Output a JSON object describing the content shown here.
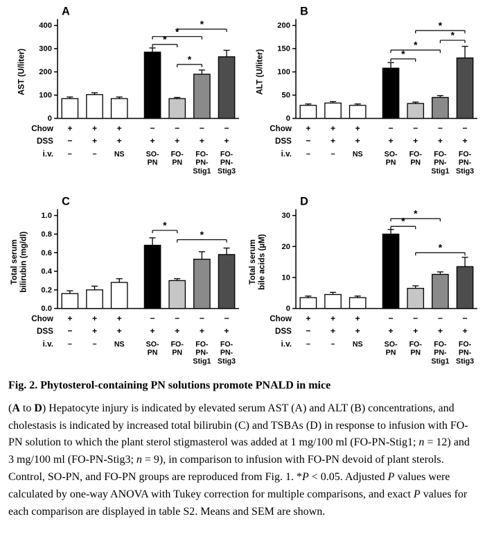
{
  "caption": {
    "title": "Fig. 2. Phytosterol-containing PN solutions promote PNALD in mice",
    "segments": [
      {
        "t": "("
      },
      {
        "t": "A",
        "b": true
      },
      {
        "t": " to "
      },
      {
        "t": "D",
        "b": true
      },
      {
        "t": ") Hepatocyte injury is indicated by elevated serum AST (A) and ALT (B) concentrations, and cholestasis is indicated by increased total bilirubin (C) and TSBAs (D) in response to infusion with FO-PN solution to which the plant sterol stigmasterol was added at 1 mg/100 ml (FO-PN-Stig1; "
      },
      {
        "t": "n",
        "i": true
      },
      {
        "t": " = 12) and 3 mg/100 ml (FO-PN-Stig3; "
      },
      {
        "t": "n",
        "i": true
      },
      {
        "t": " = 9), in comparison to infusion with FO-PN devoid of plant sterols. Control, SO-PN, and FO-PN groups are reproduced from Fig. 1. *"
      },
      {
        "t": "P",
        "i": true
      },
      {
        "t": " < 0.05. Adjusted "
      },
      {
        "t": "P",
        "i": true
      },
      {
        "t": " values were calculated by one-way ANOVA with Tukey correction for multiple comparisons, and exact "
      },
      {
        "t": "P",
        "i": true
      },
      {
        "t": " values for each comparison are displayed in table S2. Means and SEM are shown."
      }
    ]
  },
  "colors": {
    "white": "#ffffff",
    "black": "#000000",
    "gray_light": "#c6c6c6",
    "gray_mid": "#8a8a8a",
    "gray_dark": "#4d4d4d"
  },
  "groups": {
    "row_labels": [
      "Chow",
      "DSS",
      "i.v."
    ],
    "chow": [
      "+",
      "+",
      "+",
      "−",
      "−",
      "−",
      "−"
    ],
    "dss": [
      "−",
      "+",
      "+",
      "+",
      "+",
      "+",
      "+"
    ],
    "iv": [
      [
        "−"
      ],
      [
        "−"
      ],
      [
        "NS"
      ],
      [
        "SO-",
        "PN"
      ],
      [
        "FO-",
        "PN"
      ],
      [
        "FO-",
        "PN-",
        "Stig1"
      ],
      [
        "FO-",
        "PN-",
        "Stig3"
      ]
    ]
  },
  "chart_data": [
    {
      "type": "bar",
      "panel": "A",
      "ylabel": "AST (U/liter)",
      "ylabel_lines": [
        "AST (U/liter)"
      ],
      "categories": [
        "chow",
        "chow+DSS",
        "chow+DSS+NS",
        "SO-PN",
        "FO-PN",
        "FO-PN-Stig1",
        "FO-PN-Stig3"
      ],
      "values": [
        85,
        102,
        85,
        285,
        85,
        190,
        265
      ],
      "errors": [
        7,
        8,
        7,
        18,
        5,
        18,
        28
      ],
      "bar_colors": [
        "white",
        "white",
        "white",
        "black",
        "gray_light",
        "gray_mid",
        "gray_dark"
      ],
      "ylim": [
        0,
        400
      ],
      "yticks": [
        0,
        100,
        200,
        300,
        400
      ],
      "ytick_labels": [
        "0",
        "100",
        "200",
        "300",
        "400"
      ],
      "significance": [
        {
          "i": 3,
          "j": 4,
          "y": 318,
          "label": "*"
        },
        {
          "i": 4,
          "j": 5,
          "y": 232,
          "label": "*"
        },
        {
          "i": 3,
          "j": 5,
          "y": 352,
          "label": "*"
        },
        {
          "i": 4,
          "j": 6,
          "y": 384,
          "label": "*"
        }
      ]
    },
    {
      "type": "bar",
      "panel": "B",
      "ylabel": "ALT (U/liter)",
      "ylabel_lines": [
        "ALT (U/liter)"
      ],
      "categories": [
        "chow",
        "chow+DSS",
        "chow+DSS+NS",
        "SO-PN",
        "FO-PN",
        "FO-PN-Stig1",
        "FO-PN-Stig3"
      ],
      "values": [
        28,
        33,
        28,
        108,
        32,
        45,
        130
      ],
      "errors": [
        3,
        3,
        3,
        12,
        3,
        4,
        25
      ],
      "bar_colors": [
        "white",
        "white",
        "white",
        "black",
        "gray_light",
        "gray_mid",
        "gray_dark"
      ],
      "ylim": [
        0,
        200
      ],
      "yticks": [
        0,
        50,
        100,
        150,
        200
      ],
      "ytick_labels": [
        "0",
        "50",
        "100",
        "150",
        "200"
      ],
      "significance": [
        {
          "i": 3,
          "j": 4,
          "y": 128,
          "label": "*"
        },
        {
          "i": 3,
          "j": 5,
          "y": 147,
          "label": "*"
        },
        {
          "i": 5,
          "j": 6,
          "y": 168,
          "label": "*"
        },
        {
          "i": 4,
          "j": 6,
          "y": 189,
          "label": "*"
        }
      ]
    },
    {
      "type": "bar",
      "panel": "C",
      "ylabel": "Total serum bilirubin (mg/dl)",
      "ylabel_lines": [
        "Total serum",
        "bilirubin (mg/dl)"
      ],
      "categories": [
        "chow",
        "chow+DSS",
        "chow+DSS+NS",
        "SO-PN",
        "FO-PN",
        "FO-PN-Stig1",
        "FO-PN-Stig3"
      ],
      "values": [
        0.16,
        0.2,
        0.28,
        0.68,
        0.3,
        0.53,
        0.58
      ],
      "errors": [
        0.03,
        0.04,
        0.04,
        0.08,
        0.02,
        0.08,
        0.07
      ],
      "bar_colors": [
        "white",
        "white",
        "white",
        "black",
        "gray_light",
        "gray_mid",
        "gray_dark"
      ],
      "ylim": [
        0,
        1.0
      ],
      "yticks": [
        0,
        0.2,
        0.4,
        0.6,
        0.8,
        1.0
      ],
      "ytick_labels": [
        "0.0",
        "0.2",
        "0.4",
        "0.6",
        "0.8",
        "1.0"
      ],
      "significance": [
        {
          "i": 3,
          "j": 4,
          "y": 0.84,
          "label": "*"
        },
        {
          "i": 4,
          "j": 6,
          "y": 0.74,
          "label": "*"
        }
      ]
    },
    {
      "type": "bar",
      "panel": "D",
      "ylabel": "Total serum bile acids (µM)",
      "ylabel_lines": [
        "Total serum",
        "bile acids (µM)"
      ],
      "categories": [
        "chow",
        "chow+DSS",
        "chow+DSS+NS",
        "SO-PN",
        "FO-PN",
        "FO-PN-Stig1",
        "FO-PN-Stig3"
      ],
      "values": [
        3.5,
        4.5,
        3.5,
        24,
        6.5,
        11,
        13.5
      ],
      "errors": [
        0.5,
        0.7,
        0.5,
        1.5,
        0.8,
        0.8,
        3
      ],
      "bar_colors": [
        "white",
        "white",
        "white",
        "black",
        "gray_light",
        "gray_mid",
        "gray_dark"
      ],
      "ylim": [
        0,
        30
      ],
      "yticks": [
        0,
        10,
        20,
        30
      ],
      "ytick_labels": [
        "0",
        "10",
        "20",
        "30"
      ],
      "significance": [
        {
          "i": 3,
          "j": 4,
          "y": 26.5,
          "label": "*"
        },
        {
          "i": 3,
          "j": 5,
          "y": 29,
          "label": "*"
        },
        {
          "i": 4,
          "j": 6,
          "y": 18,
          "label": "*"
        }
      ]
    }
  ]
}
